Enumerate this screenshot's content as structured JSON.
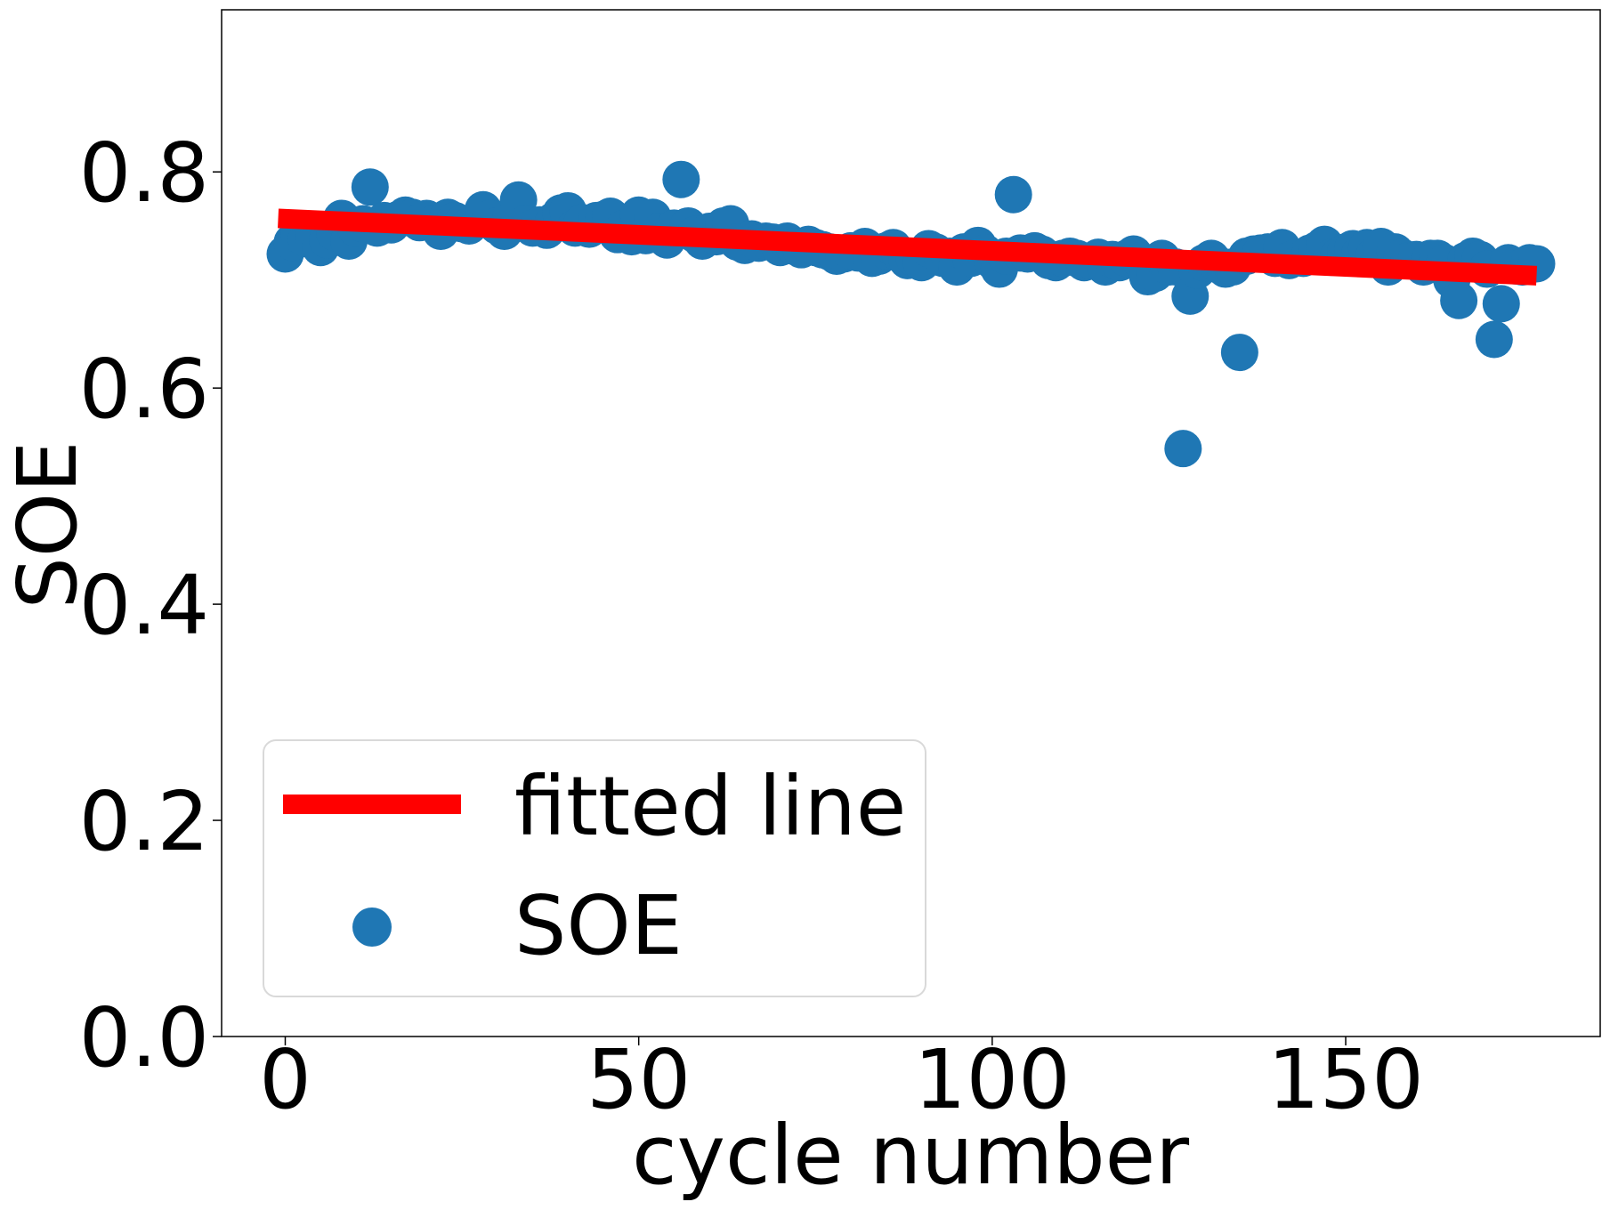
{
  "chart_data": {
    "type": "scatter",
    "xlabel": "cycle number",
    "ylabel": "SOE",
    "xlim": [
      -9,
      186
    ],
    "ylim": [
      0.0,
      0.95
    ],
    "xticks": [
      0,
      50,
      100,
      150
    ],
    "xtick_labels": [
      "0",
      "50",
      "100",
      "150"
    ],
    "yticks": [
      0.0,
      0.2,
      0.4,
      0.6,
      0.8
    ],
    "ytick_labels": [
      "0.0",
      "0.2",
      "0.4",
      "0.6",
      "0.8"
    ],
    "grid": false,
    "legend_position": "lower-left",
    "series": [
      {
        "name": "SOE",
        "kind": "scatter",
        "color": "#1f77b4",
        "x": [
          0,
          1,
          2,
          3,
          4,
          5,
          6,
          7,
          8,
          9,
          10,
          11,
          12,
          13,
          14,
          15,
          16,
          17,
          18,
          19,
          20,
          21,
          22,
          23,
          24,
          25,
          26,
          27,
          28,
          29,
          30,
          31,
          32,
          33,
          34,
          35,
          36,
          37,
          38,
          39,
          40,
          41,
          42,
          43,
          44,
          45,
          46,
          47,
          48,
          49,
          50,
          51,
          52,
          53,
          54,
          55,
          56,
          57,
          58,
          59,
          60,
          61,
          62,
          63,
          64,
          65,
          66,
          67,
          68,
          69,
          70,
          71,
          72,
          73,
          74,
          75,
          76,
          77,
          78,
          79,
          80,
          81,
          82,
          83,
          84,
          85,
          86,
          87,
          88,
          89,
          90,
          91,
          92,
          93,
          94,
          95,
          96,
          97,
          98,
          99,
          100,
          101,
          102,
          103,
          104,
          105,
          106,
          107,
          108,
          109,
          110,
          111,
          112,
          113,
          114,
          115,
          116,
          117,
          118,
          119,
          120,
          121,
          122,
          123,
          124,
          125,
          126,
          127,
          128,
          129,
          130,
          131,
          132,
          133,
          134,
          135,
          136,
          137,
          138,
          139,
          140,
          141,
          142,
          143,
          144,
          145,
          146,
          147,
          148,
          149,
          150,
          151,
          152,
          153,
          154,
          155,
          156,
          157,
          158,
          159,
          160,
          161,
          162,
          163,
          164,
          165,
          166,
          167,
          168,
          169,
          170,
          171,
          172,
          173,
          174,
          175,
          176,
          177
        ],
        "y": [
          0.724,
          0.735,
          0.742,
          0.738,
          0.741,
          0.73,
          0.737,
          0.744,
          0.757,
          0.736,
          0.748,
          0.752,
          0.786,
          0.748,
          0.755,
          0.751,
          0.756,
          0.76,
          0.758,
          0.753,
          0.757,
          0.752,
          0.745,
          0.758,
          0.755,
          0.752,
          0.75,
          0.755,
          0.765,
          0.757,
          0.75,
          0.745,
          0.76,
          0.774,
          0.752,
          0.748,
          0.751,
          0.746,
          0.755,
          0.762,
          0.764,
          0.748,
          0.753,
          0.747,
          0.755,
          0.756,
          0.759,
          0.742,
          0.748,
          0.74,
          0.76,
          0.741,
          0.758,
          0.745,
          0.737,
          0.748,
          0.793,
          0.75,
          0.742,
          0.736,
          0.745,
          0.74,
          0.75,
          0.752,
          0.735,
          0.732,
          0.738,
          0.734,
          0.736,
          0.735,
          0.73,
          0.736,
          0.731,
          0.728,
          0.733,
          0.73,
          0.728,
          0.726,
          0.722,
          0.724,
          0.727,
          0.725,
          0.731,
          0.72,
          0.722,
          0.727,
          0.73,
          0.724,
          0.718,
          0.72,
          0.716,
          0.729,
          0.726,
          0.72,
          0.722,
          0.712,
          0.726,
          0.72,
          0.732,
          0.725,
          0.718,
          0.71,
          0.722,
          0.779,
          0.725,
          0.724,
          0.727,
          0.724,
          0.718,
          0.716,
          0.72,
          0.722,
          0.72,
          0.716,
          0.718,
          0.721,
          0.712,
          0.719,
          0.716,
          0.72,
          0.724,
          0.718,
          0.703,
          0.706,
          0.72,
          0.712,
          0.712,
          0.544,
          0.685,
          0.709,
          0.716,
          0.72,
          0.714,
          0.71,
          0.712,
          0.633,
          0.722,
          0.724,
          0.725,
          0.726,
          0.72,
          0.73,
          0.718,
          0.721,
          0.72,
          0.725,
          0.728,
          0.733,
          0.721,
          0.722,
          0.726,
          0.729,
          0.724,
          0.73,
          0.722,
          0.731,
          0.712,
          0.726,
          0.721,
          0.718,
          0.719,
          0.712,
          0.72,
          0.72,
          0.716,
          0.7,
          0.681,
          0.718,
          0.722,
          0.719,
          0.71,
          0.645,
          0.678,
          0.716,
          0.713,
          0.712,
          0.716,
          0.715
        ]
      },
      {
        "name": "fitted line",
        "kind": "line",
        "color": "#ff0000",
        "x": [
          -1,
          177
        ],
        "y": [
          0.757,
          0.704
        ]
      }
    ],
    "legend_entries": [
      "fitted line",
      "SOE"
    ]
  }
}
